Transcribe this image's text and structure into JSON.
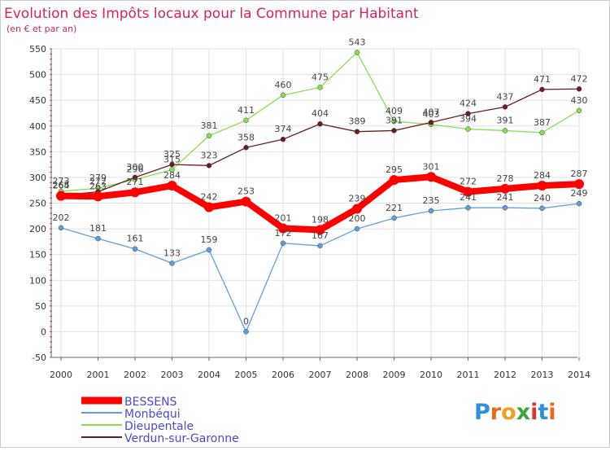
{
  "chart_data": {
    "type": "line",
    "title": "Evolution des Impôts locaux pour la Commune par Habitant",
    "subtitle": "(en € et par an)",
    "xlabel": "",
    "ylabel": "",
    "ylim": [
      -50,
      550
    ],
    "yticks": [
      -50,
      0,
      50,
      100,
      150,
      200,
      250,
      300,
      350,
      400,
      450,
      500,
      550
    ],
    "grid": true,
    "categories": [
      "2000",
      "2001",
      "2002",
      "2003",
      "2004",
      "2005",
      "2006",
      "2007",
      "2008",
      "2009",
      "2010",
      "2011",
      "2012",
      "2013",
      "2014"
    ],
    "series": [
      {
        "name": "BESSENS",
        "color": "#ff0000",
        "values": [
          264,
          263,
          271,
          284,
          242,
          253,
          201,
          198,
          239,
          295,
          301,
          272,
          278,
          284,
          287
        ]
      },
      {
        "name": "Monbéqui",
        "color": "#5f9fd8",
        "values": [
          202,
          181,
          161,
          133,
          159,
          0,
          172,
          167,
          200,
          221,
          235,
          241,
          241,
          240,
          249
        ]
      },
      {
        "name": "Dieupentale",
        "color": "#88dd55",
        "values": [
          273,
          279,
          296,
          315,
          381,
          411,
          460,
          475,
          543,
          409,
          403,
          394,
          391,
          387,
          430
        ]
      },
      {
        "name": "Verdun-sur-Garonne",
        "color": "#6b1a22",
        "values": [
          265,
          272,
          300,
          325,
          323,
          358,
          374,
          404,
          389,
          391,
          407,
          424,
          437,
          471,
          472
        ]
      }
    ]
  },
  "branding": {
    "logo_text": "Proxiti"
  }
}
